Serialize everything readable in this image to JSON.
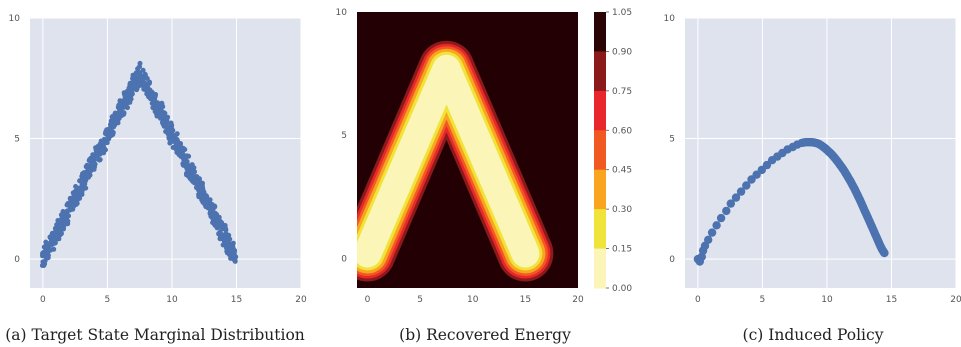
{
  "chart_data": [
    {
      "type": "scatter",
      "caption": "(a)  Target State Marginal Distribution",
      "xlim": [
        -1,
        20
      ],
      "ylim": [
        -1.2,
        10
      ],
      "xticks": [
        0,
        5,
        10,
        15,
        20
      ],
      "yticks": [
        0,
        5,
        10
      ],
      "grid": true,
      "peak": [
        7.5,
        7.7
      ],
      "x_range": [
        0,
        15
      ],
      "point_color": "#4c72b0",
      "background": "#dfe3ee"
    },
    {
      "type": "heatmap",
      "caption": "(b)  Recovered Energy",
      "xlim": [
        -1,
        20
      ],
      "ylim": [
        -1.2,
        10
      ],
      "xticks": [
        0,
        5,
        10,
        15,
        20
      ],
      "yticks": [
        0,
        5,
        10
      ],
      "colorbar_ticks": [
        "1.05",
        "0.90",
        "0.75",
        "0.60",
        "0.45",
        "0.30",
        "0.15",
        "0.00"
      ],
      "colorbar_colors": [
        "#2b0404",
        "#8b1a1a",
        "#e8262b",
        "#f05a22",
        "#f9a51f",
        "#f0e33a",
        "#fbf6b8"
      ],
      "ridge_path": [
        [
          0.0,
          0.2
        ],
        [
          7.5,
          7.7
        ],
        [
          15.0,
          0.2
        ]
      ],
      "background_color": "#230003"
    },
    {
      "type": "scatter",
      "caption": "(c)  Induced Policy",
      "xlim": [
        -1,
        20
      ],
      "ylim": [
        -1.2,
        10
      ],
      "xticks": [
        0,
        5,
        10,
        15,
        20
      ],
      "yticks": [
        0,
        5,
        10
      ],
      "grid": true,
      "point_color": "#4c72b0",
      "background": "#dfe3ee",
      "points": [
        [
          0.0,
          0.0
        ],
        [
          0.15,
          -0.1
        ],
        [
          0.3,
          0.1
        ],
        [
          0.4,
          0.35
        ],
        [
          0.55,
          0.55
        ],
        [
          0.8,
          0.8
        ],
        [
          1.1,
          1.1
        ],
        [
          1.45,
          1.4
        ],
        [
          1.8,
          1.7
        ],
        [
          2.2,
          2.0
        ],
        [
          2.55,
          2.3
        ],
        [
          2.95,
          2.55
        ],
        [
          3.35,
          2.8
        ],
        [
          3.75,
          3.05
        ],
        [
          4.15,
          3.3
        ],
        [
          4.55,
          3.5
        ],
        [
          4.95,
          3.7
        ],
        [
          5.35,
          3.9
        ],
        [
          5.75,
          4.1
        ],
        [
          6.15,
          4.25
        ],
        [
          6.55,
          4.4
        ],
        [
          6.95,
          4.55
        ],
        [
          7.35,
          4.65
        ],
        [
          7.7,
          4.75
        ],
        [
          8.05,
          4.82
        ],
        [
          8.4,
          4.85
        ],
        [
          8.75,
          4.85
        ],
        [
          9.05,
          4.83
        ],
        [
          9.35,
          4.78
        ],
        [
          9.6,
          4.7
        ],
        [
          9.85,
          4.6
        ],
        [
          10.1,
          4.48
        ],
        [
          10.35,
          4.35
        ],
        [
          10.6,
          4.2
        ],
        [
          10.85,
          4.03
        ],
        [
          11.1,
          3.85
        ],
        [
          11.35,
          3.65
        ],
        [
          11.6,
          3.43
        ],
        [
          11.85,
          3.2
        ],
        [
          12.1,
          2.95
        ],
        [
          12.35,
          2.68
        ],
        [
          12.6,
          2.4
        ],
        [
          12.85,
          2.1
        ],
        [
          13.1,
          1.8
        ],
        [
          13.35,
          1.5
        ],
        [
          13.6,
          1.2
        ],
        [
          13.85,
          0.9
        ],
        [
          14.05,
          0.65
        ],
        [
          14.25,
          0.42
        ],
        [
          14.45,
          0.25
        ]
      ]
    }
  ]
}
